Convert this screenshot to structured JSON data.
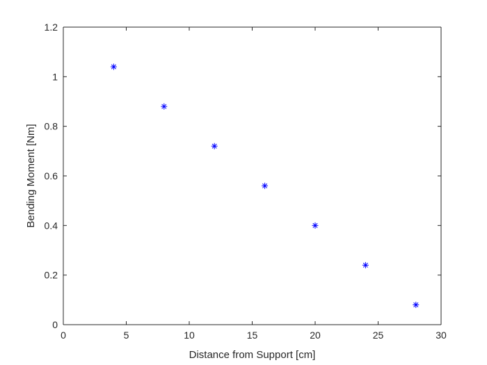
{
  "chart_data": {
    "type": "scatter",
    "title": "",
    "xlabel": "Distance from Support [cm]",
    "ylabel": "Bending Moment [Nm]",
    "xlim": [
      0,
      30
    ],
    "ylim": [
      0,
      1.2
    ],
    "x_ticks": [
      "0",
      "5",
      "10",
      "15",
      "20",
      "25",
      "30"
    ],
    "y_ticks": [
      "0",
      "0.2",
      "0.4",
      "0.6",
      "0.8",
      "1",
      "1.2"
    ],
    "grid": false,
    "marker": "asterisk",
    "marker_color": "#0000ff",
    "series": [
      {
        "x": [
          4,
          8,
          12,
          16,
          20,
          24,
          28
        ],
        "y": [
          1.04,
          0.88,
          0.72,
          0.56,
          0.4,
          0.24,
          0.08
        ]
      }
    ]
  }
}
